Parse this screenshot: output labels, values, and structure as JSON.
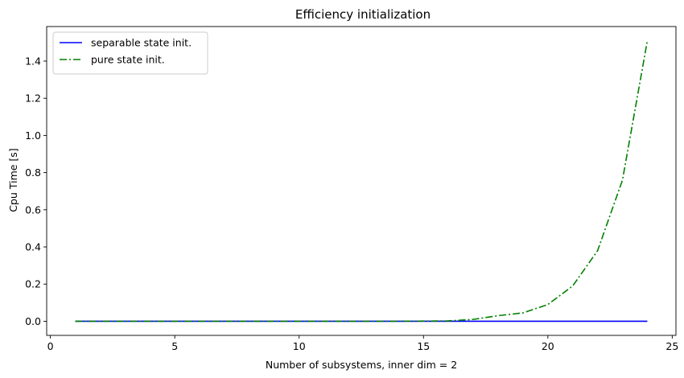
{
  "chart_data": {
    "type": "line",
    "title": "Efficiency initialization",
    "xlabel": "Number of subsystems, inner dim = 2",
    "ylabel": "Cpu Time [s]",
    "xlim": [
      -0.15,
      25.15
    ],
    "ylim": [
      -0.076,
      1.586
    ],
    "xticks": [
      0,
      5,
      10,
      15,
      20,
      25
    ],
    "xtick_labels": [
      "0",
      "5",
      "10",
      "15",
      "20",
      "25"
    ],
    "yticks": [
      0.0,
      0.2,
      0.4,
      0.6,
      0.8,
      1.0,
      1.2,
      1.4
    ],
    "ytick_labels": [
      "0.0",
      "0.2",
      "0.4",
      "0.6",
      "0.8",
      "1.0",
      "1.2",
      "1.4"
    ],
    "grid": false,
    "legend_position": "top-left",
    "x": [
      1,
      2,
      3,
      4,
      5,
      6,
      7,
      8,
      9,
      10,
      11,
      12,
      13,
      14,
      15,
      16,
      17,
      18,
      19,
      20,
      21,
      22,
      23,
      24
    ],
    "series": [
      {
        "name": "separable state init.",
        "color": "#0000ff",
        "style": "solid",
        "values": [
          0,
          0,
          0,
          0,
          0,
          0,
          0,
          0,
          0,
          0,
          0,
          0,
          0,
          0,
          0,
          0,
          0,
          0,
          0,
          0,
          0,
          0,
          0,
          0
        ]
      },
      {
        "name": "pure state init.",
        "color": "#008000",
        "style": "dashdot",
        "values": [
          0,
          0,
          0,
          0,
          0,
          0,
          0,
          0,
          0,
          0,
          0,
          0,
          0,
          0,
          0.001,
          0.002,
          0.01,
          0.03,
          0.045,
          0.09,
          0.19,
          0.38,
          0.76,
          1.51
        ]
      }
    ]
  }
}
